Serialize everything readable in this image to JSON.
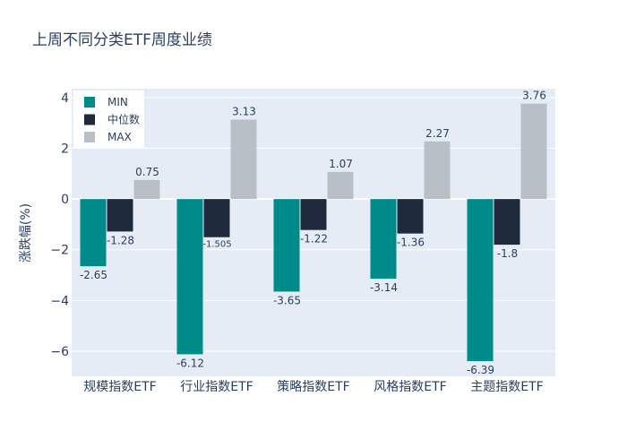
{
  "chart_data": {
    "type": "bar",
    "title": "上周不同分类ETF周度业绩",
    "xlabel": "",
    "ylabel": "涨跌幅(%)",
    "categories": [
      "规模指数ETF",
      "行业指数ETF",
      "策略指数ETF",
      "风格指数ETF",
      "主题指数ETF"
    ],
    "series": [
      {
        "name": "MIN",
        "color": "#008b8b",
        "values": [
          -2.65,
          -6.12,
          -3.65,
          -3.14,
          -6.39
        ],
        "labels": [
          "-2.65",
          "-6.12",
          "-3.65",
          "-3.14",
          "-6.39"
        ]
      },
      {
        "name": "中位数",
        "color": "#1f2a3d",
        "values": [
          -1.28,
          -1.505,
          -1.22,
          -1.36,
          -1.8
        ],
        "labels": [
          "-1.28",
          "-1.505",
          "-1.22",
          "-1.36",
          "-1.8"
        ]
      },
      {
        "name": "MAX",
        "color": "#b8bfc7",
        "values": [
          0.75,
          3.13,
          1.07,
          2.27,
          3.76
        ],
        "labels": [
          "0.75",
          "3.13",
          "1.07",
          "2.27",
          "3.76"
        ]
      }
    ],
    "yticks": [
      4,
      2,
      0,
      -2,
      -4,
      -6
    ],
    "ytick_labels": [
      "4",
      "2",
      "0",
      "−2",
      "−4",
      "−6"
    ],
    "ylim": [
      -6.99,
      4.35
    ],
    "grid": true,
    "legend_position": "top-left",
    "colors": {
      "plot_bg": "#e5ecf6",
      "grid": "#ffffff",
      "text": "#2a3f5f"
    }
  }
}
